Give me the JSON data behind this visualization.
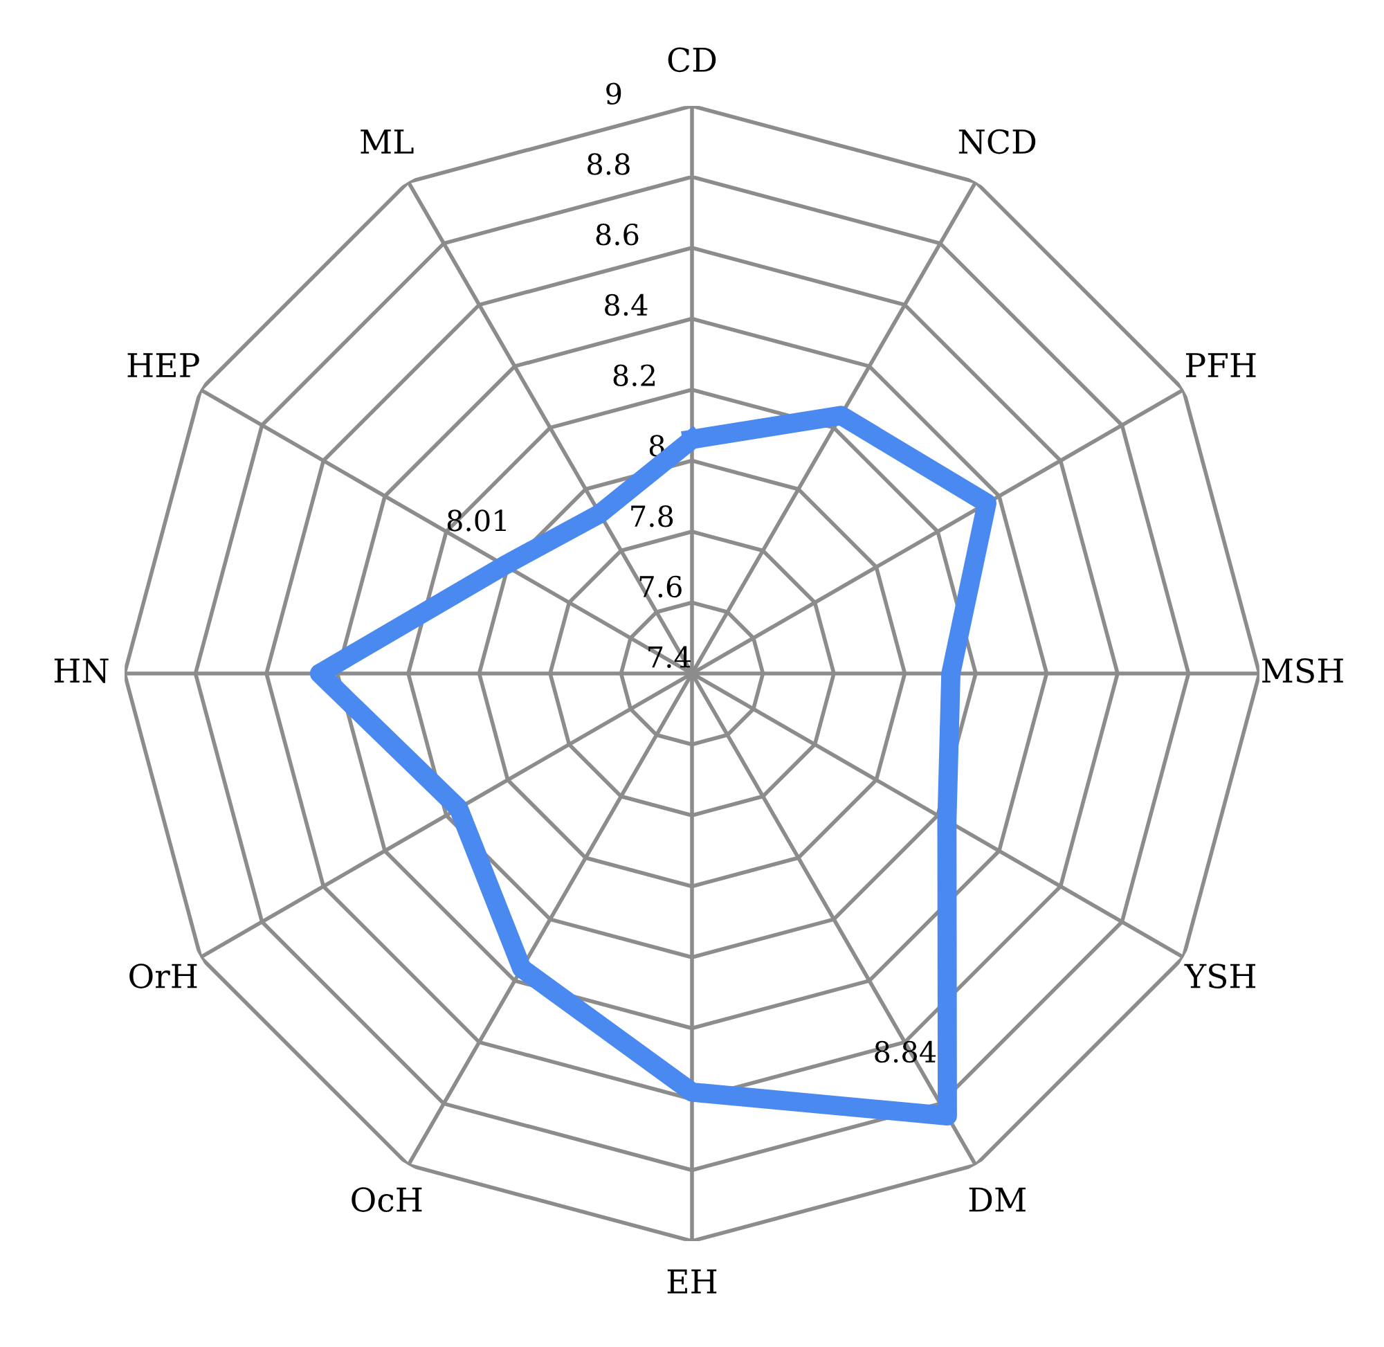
{
  "chart_data": {
    "type": "radar",
    "categories": [
      "CD",
      "NCD",
      "PFH",
      "MSH",
      "YSH",
      "DM",
      "EH",
      "OcH",
      "OrH",
      "HN",
      "HEP",
      "ML"
    ],
    "series": [
      {
        "color": "#4a8af0",
        "values": [
          8.06,
          8.24,
          8.36,
          8.13,
          8.23,
          8.84,
          8.58,
          8.36,
          8.16,
          8.45,
          8.01,
          7.92
        ],
        "value_labels": [
          null,
          null,
          null,
          null,
          null,
          "8.84",
          null,
          null,
          null,
          null,
          "8.01",
          null
        ]
      }
    ],
    "ylim": [
      7.4,
      9
    ],
    "yticks": [
      7.4,
      7.6,
      7.8,
      8,
      8.2,
      8.4,
      8.6,
      8.8,
      9
    ],
    "grid": true,
    "line_style": "solid"
  }
}
